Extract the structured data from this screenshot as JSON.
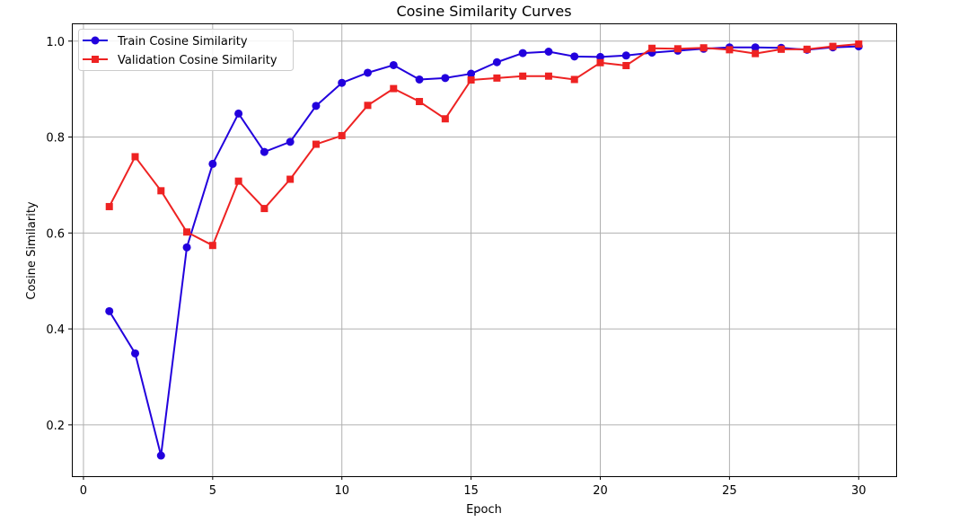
{
  "chart_data": {
    "type": "line",
    "title": "Cosine Similarity Curves",
    "xlabel": "Epoch",
    "ylabel": "Cosine Similarity",
    "xlim": [
      -0.45,
      31.45
    ],
    "ylim": [
      0.093,
      1.037
    ],
    "xticks": [
      0,
      5,
      10,
      15,
      20,
      25,
      30
    ],
    "yticks": [
      0.2,
      0.4,
      0.6,
      0.8,
      1.0
    ],
    "ytick_labels": [
      "0.2",
      "0.4",
      "0.6",
      "0.8",
      "1.0"
    ],
    "grid": true,
    "legend_position": "upper-left",
    "x": [
      1,
      2,
      3,
      4,
      5,
      6,
      7,
      8,
      9,
      10,
      11,
      12,
      13,
      14,
      15,
      16,
      17,
      18,
      19,
      20,
      21,
      22,
      23,
      24,
      25,
      26,
      27,
      28,
      29,
      30
    ],
    "series": [
      {
        "name": "Train Cosine Similarity",
        "color": "#2200dd",
        "marker": "circle",
        "values": [
          0.437,
          0.349,
          0.136,
          0.57,
          0.744,
          0.849,
          0.769,
          0.79,
          0.865,
          0.913,
          0.934,
          0.95,
          0.92,
          0.923,
          0.932,
          0.956,
          0.975,
          0.978,
          0.968,
          0.967,
          0.97,
          0.976,
          0.98,
          0.984,
          0.987,
          0.987,
          0.986,
          0.982,
          0.987,
          0.989
        ]
      },
      {
        "name": "Validation Cosine Similarity",
        "color": "#ee2222",
        "marker": "square",
        "values": [
          0.655,
          0.759,
          0.688,
          0.602,
          0.574,
          0.708,
          0.651,
          0.712,
          0.785,
          0.803,
          0.866,
          0.901,
          0.874,
          0.838,
          0.919,
          0.923,
          0.927,
          0.927,
          0.92,
          0.955,
          0.949,
          0.985,
          0.984,
          0.986,
          0.982,
          0.974,
          0.983,
          0.983,
          0.989,
          0.994
        ]
      }
    ]
  }
}
